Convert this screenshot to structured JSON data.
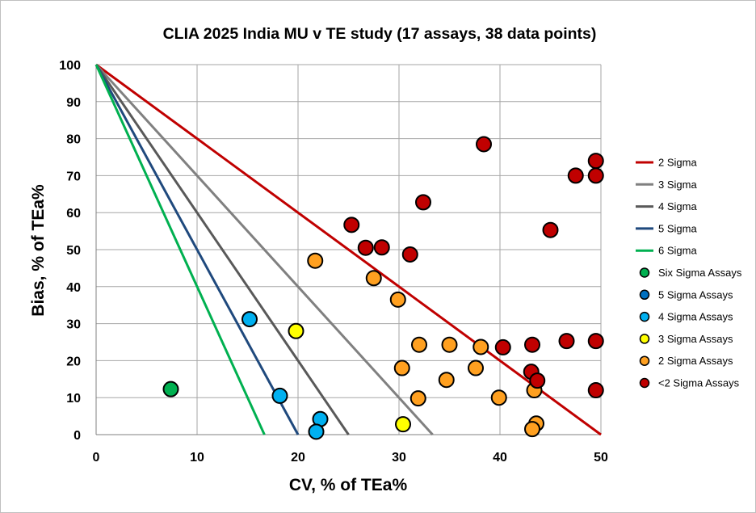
{
  "chart_data": {
    "type": "scatter",
    "title": "CLIA 2025 India MU v TE study (17 assays, 38 data points)",
    "xlabel": "CV, % of TEa%",
    "ylabel": "Bias, % of TEa%",
    "xlim": [
      0,
      50
    ],
    "ylim": [
      0,
      100
    ],
    "x_ticks": [
      0,
      10,
      20,
      30,
      40,
      50
    ],
    "y_ticks": [
      0,
      10,
      20,
      30,
      40,
      50,
      60,
      70,
      80,
      90,
      100
    ],
    "x_tick_labels": [
      "0",
      "10",
      "20",
      "30",
      "40",
      "50"
    ],
    "y_tick_labels": [
      "0",
      "10",
      "20",
      "30",
      "40",
      "50",
      "60",
      "70",
      "80",
      "90",
      "100"
    ],
    "grid": true,
    "legend_position": "right",
    "sigma_lines": [
      {
        "name": "2 Sigma",
        "color": "#c00000",
        "x_intercept": 50
      },
      {
        "name": "3 Sigma",
        "color": "#808080",
        "x_intercept": 33.33
      },
      {
        "name": "4 Sigma",
        "color": "#595959",
        "x_intercept": 25
      },
      {
        "name": "5 Sigma",
        "color": "#1f497d",
        "x_intercept": 20
      },
      {
        "name": "6 Sigma",
        "color": "#00b050",
        "x_intercept": 16.67
      }
    ],
    "series": [
      {
        "name": "Six Sigma Assays",
        "color": "#00b050",
        "points": [
          [
            7.4,
            12.3
          ]
        ]
      },
      {
        "name": "5 Sigma Assays",
        "color": "#0070c0",
        "points": []
      },
      {
        "name": "4 Sigma Assays",
        "color": "#00b0f0",
        "points": [
          [
            15.2,
            31.2
          ],
          [
            18.2,
            10.5
          ],
          [
            22.2,
            4.2
          ],
          [
            21.8,
            0.8
          ]
        ]
      },
      {
        "name": "3 Sigma Assays",
        "color": "#ffff00",
        "points": [
          [
            19.8,
            28.0
          ],
          [
            30.4,
            2.8
          ]
        ]
      },
      {
        "name": "2 Sigma Assays",
        "color": "#ffa020",
        "points": [
          [
            21.7,
            47.0
          ],
          [
            27.5,
            42.3
          ],
          [
            29.9,
            36.5
          ],
          [
            30.3,
            18.0
          ],
          [
            32.0,
            24.3
          ],
          [
            31.9,
            9.8
          ],
          [
            34.7,
            14.8
          ],
          [
            35.0,
            24.3
          ],
          [
            37.6,
            18.0
          ],
          [
            38.1,
            23.7
          ],
          [
            39.9,
            10.0
          ],
          [
            43.4,
            12.0
          ],
          [
            43.6,
            3.0
          ],
          [
            43.2,
            1.5
          ]
        ]
      },
      {
        "name": "<2 Sigma Assays",
        "color": "#c00000",
        "points": [
          [
            38.4,
            78.5
          ],
          [
            32.4,
            62.8
          ],
          [
            25.3,
            56.7
          ],
          [
            26.7,
            50.5
          ],
          [
            28.3,
            50.6
          ],
          [
            31.1,
            48.7
          ],
          [
            45.0,
            55.3
          ],
          [
            47.5,
            70.0
          ],
          [
            49.5,
            74.0
          ],
          [
            49.5,
            70.0
          ],
          [
            40.3,
            23.6
          ],
          [
            43.2,
            24.3
          ],
          [
            46.6,
            25.3
          ],
          [
            49.5,
            25.3
          ],
          [
            43.1,
            17.0
          ],
          [
            43.7,
            14.6
          ],
          [
            49.5,
            12.0
          ]
        ]
      }
    ]
  }
}
